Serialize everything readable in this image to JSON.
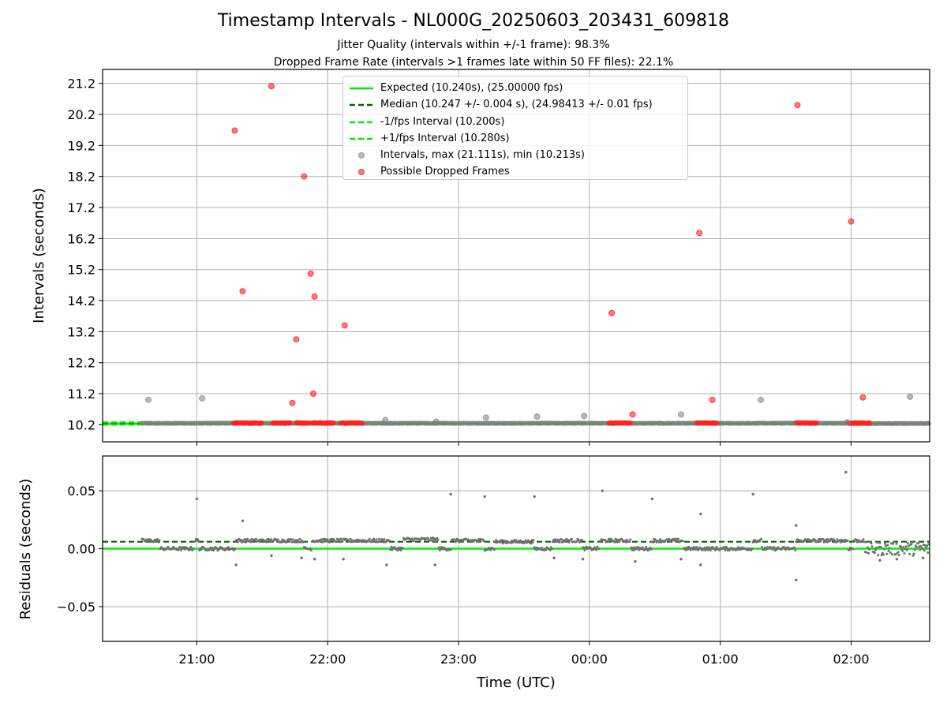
{
  "title": "Timestamp Intervals - NL000G_20250603_203431_609818",
  "subtitle_lines": [
    "Jitter Quality (intervals within +/-1 frame): 98.3%",
    "Dropped Frame Rate (intervals >1 frames late within 50 FF files): 22.1%"
  ],
  "chart_data": [
    {
      "type": "scatter",
      "panel": "top",
      "ylabel": "Intervals (seconds)",
      "xlabel": "",
      "x_time_range_hours": [
        20.28,
        26.6
      ],
      "ylim": [
        9.65,
        21.65
      ],
      "yticks": [
        10.2,
        11.2,
        12.2,
        13.2,
        14.2,
        15.2,
        16.2,
        17.2,
        18.2,
        19.2,
        20.2,
        21.2
      ],
      "ytick_labels": [
        "10.2",
        "11.2",
        "12.2",
        "13.2",
        "14.2",
        "15.2",
        "16.2",
        "17.2",
        "18.2",
        "19.2",
        "20.2",
        "21.2"
      ],
      "grid": true,
      "legend_position": "top-center",
      "colors": {
        "expected": "#00ee00",
        "median": "#006400",
        "minus_fps": "#00ee00",
        "plus_fps": "#00ee00",
        "intervals": "#808080",
        "dropped": "#ff2020"
      },
      "legend": [
        {
          "key": "expected",
          "style": "solid",
          "label": "Expected (10.240s), (25.00000 fps)"
        },
        {
          "key": "median",
          "style": "dashed",
          "label": "Median (10.247 +/- 0.004 s), (24.98413 +/- 0.01 fps)"
        },
        {
          "key": "minus_fps",
          "style": "dashed",
          "label": "-1/fps Interval (10.200s)"
        },
        {
          "key": "plus_fps",
          "style": "dashed",
          "label": "+1/fps Interval (10.280s)"
        },
        {
          "key": "intervals",
          "style": "marker",
          "label": "Intervals, max (21.111s), min (10.213s)"
        },
        {
          "key": "dropped",
          "style": "marker",
          "label": "Possible Dropped Frames"
        }
      ],
      "lines": {
        "expected": 10.24,
        "median": 10.247,
        "minus_fps": 10.2,
        "plus_fps": 10.28
      },
      "baseline_segments": [
        {
          "start": 20.58,
          "end": 21.0,
          "value": 10.247
        },
        {
          "start": 21.0,
          "end": 21.9,
          "value": 10.25
        },
        {
          "start": 21.9,
          "end": 22.5,
          "value": 10.247
        },
        {
          "start": 22.5,
          "end": 22.85,
          "value": 10.248
        },
        {
          "start": 22.85,
          "end": 23.6,
          "value": 10.247
        },
        {
          "start": 23.6,
          "end": 24.3,
          "value": 10.25
        },
        {
          "start": 24.3,
          "end": 25.3,
          "value": 10.247
        },
        {
          "start": 25.3,
          "end": 26.0,
          "value": 10.25
        },
        {
          "start": 26.0,
          "end": 26.6,
          "value": 10.24
        }
      ],
      "dropped_segments": [
        {
          "start": 21.28,
          "end": 21.5
        },
        {
          "start": 21.58,
          "end": 21.72
        },
        {
          "start": 21.76,
          "end": 21.86
        },
        {
          "start": 21.88,
          "end": 22.05
        },
        {
          "start": 22.1,
          "end": 22.27
        },
        {
          "start": 24.15,
          "end": 24.32
        },
        {
          "start": 24.82,
          "end": 24.92
        },
        {
          "start": 24.92,
          "end": 24.98
        },
        {
          "start": 25.58,
          "end": 25.74
        },
        {
          "start": 25.98,
          "end": 26.15
        }
      ],
      "intervals_outliers": [
        {
          "x": 20.63,
          "y": 11.0
        },
        {
          "x": 21.04,
          "y": 11.05
        },
        {
          "x": 22.44,
          "y": 10.35
        },
        {
          "x": 22.83,
          "y": 10.3
        },
        {
          "x": 23.21,
          "y": 10.43
        },
        {
          "x": 23.6,
          "y": 10.46
        },
        {
          "x": 23.96,
          "y": 10.48
        },
        {
          "x": 24.7,
          "y": 10.53
        },
        {
          "x": 25.31,
          "y": 11.0
        },
        {
          "x": 25.97,
          "y": 10.28
        },
        {
          "x": 26.45,
          "y": 11.1
        }
      ],
      "dropped_outliers": [
        {
          "x": 21.29,
          "y": 19.68
        },
        {
          "x": 21.35,
          "y": 14.5
        },
        {
          "x": 21.57,
          "y": 21.11
        },
        {
          "x": 21.73,
          "y": 10.9
        },
        {
          "x": 21.76,
          "y": 12.95
        },
        {
          "x": 21.82,
          "y": 18.2
        },
        {
          "x": 21.87,
          "y": 15.07
        },
        {
          "x": 21.89,
          "y": 11.2
        },
        {
          "x": 21.9,
          "y": 14.33
        },
        {
          "x": 22.13,
          "y": 13.4
        },
        {
          "x": 24.17,
          "y": 13.8
        },
        {
          "x": 24.33,
          "y": 10.53
        },
        {
          "x": 24.84,
          "y": 16.38
        },
        {
          "x": 24.94,
          "y": 11.0
        },
        {
          "x": 25.59,
          "y": 20.5
        },
        {
          "x": 26.0,
          "y": 16.75
        },
        {
          "x": 26.09,
          "y": 11.08
        }
      ]
    },
    {
      "type": "scatter",
      "panel": "bottom",
      "ylabel": "Residuals (seconds)",
      "xlabel": "Time (UTC)",
      "x_time_range_hours": [
        20.28,
        26.6
      ],
      "ylim": [
        -0.08,
        0.08
      ],
      "yticks": [
        0.05,
        0.0,
        -0.05
      ],
      "ytick_labels": [
        "0.05",
        "0.00",
        "−0.05"
      ],
      "xticks_hours": [
        21,
        22,
        23,
        24,
        25,
        26
      ],
      "xtick_labels": [
        "21:00",
        "22:00",
        "23:00",
        "00:00",
        "01:00",
        "02:00"
      ],
      "grid": true,
      "colors": {
        "points": "#707070",
        "zero_line": "#00ee00",
        "median_line": "#006400"
      },
      "lines": {
        "zero": 0.0,
        "median": 0.006
      },
      "band_segments": [
        {
          "start": 20.58,
          "end": 20.72,
          "value": 0.007
        },
        {
          "start": 20.72,
          "end": 20.98,
          "value": 0.0
        },
        {
          "start": 20.98,
          "end": 21.02,
          "value": 0.007
        },
        {
          "start": 21.02,
          "end": 21.3,
          "value": 0.0
        },
        {
          "start": 21.3,
          "end": 21.82,
          "value": 0.007
        },
        {
          "start": 21.82,
          "end": 21.88,
          "value": 0.0
        },
        {
          "start": 21.88,
          "end": 22.48,
          "value": 0.007
        },
        {
          "start": 22.48,
          "end": 22.58,
          "value": 0.0
        },
        {
          "start": 22.58,
          "end": 22.85,
          "value": 0.008
        },
        {
          "start": 22.85,
          "end": 22.95,
          "value": 0.0
        },
        {
          "start": 22.95,
          "end": 23.2,
          "value": 0.007
        },
        {
          "start": 23.2,
          "end": 23.28,
          "value": 0.0
        },
        {
          "start": 23.28,
          "end": 23.58,
          "value": 0.006
        },
        {
          "start": 23.58,
          "end": 23.72,
          "value": 0.0
        },
        {
          "start": 23.72,
          "end": 23.95,
          "value": 0.007
        },
        {
          "start": 23.95,
          "end": 24.08,
          "value": 0.0
        },
        {
          "start": 24.08,
          "end": 24.32,
          "value": 0.007
        },
        {
          "start": 24.32,
          "end": 24.48,
          "value": 0.0
        },
        {
          "start": 24.48,
          "end": 24.72,
          "value": 0.007
        },
        {
          "start": 24.72,
          "end": 25.25,
          "value": 0.0
        },
        {
          "start": 25.25,
          "end": 25.32,
          "value": 0.007
        },
        {
          "start": 25.32,
          "end": 25.58,
          "value": 0.0
        },
        {
          "start": 25.58,
          "end": 25.98,
          "value": 0.007
        },
        {
          "start": 25.98,
          "end": 26.02,
          "value": 0.0
        },
        {
          "start": 26.02,
          "end": 26.1,
          "value": 0.007
        },
        {
          "start": 26.1,
          "end": 26.6,
          "value": 0.0
        }
      ],
      "outliers": [
        {
          "x": 21.0,
          "y": 0.043
        },
        {
          "x": 21.35,
          "y": 0.024
        },
        {
          "x": 21.3,
          "y": -0.014
        },
        {
          "x": 22.45,
          "y": -0.014
        },
        {
          "x": 22.82,
          "y": -0.014
        },
        {
          "x": 22.94,
          "y": 0.047
        },
        {
          "x": 23.2,
          "y": 0.045
        },
        {
          "x": 23.58,
          "y": 0.045
        },
        {
          "x": 24.1,
          "y": 0.05
        },
        {
          "x": 24.48,
          "y": 0.043
        },
        {
          "x": 24.35,
          "y": -0.011
        },
        {
          "x": 24.85,
          "y": 0.03
        },
        {
          "x": 24.85,
          "y": -0.014
        },
        {
          "x": 25.25,
          "y": 0.047
        },
        {
          "x": 25.58,
          "y": 0.02
        },
        {
          "x": 25.58,
          "y": -0.027
        },
        {
          "x": 25.96,
          "y": 0.066
        },
        {
          "x": 21.8,
          "y": -0.008
        },
        {
          "x": 21.9,
          "y": -0.009
        },
        {
          "x": 22.12,
          "y": -0.009
        },
        {
          "x": 21.57,
          "y": -0.006
        },
        {
          "x": 23.73,
          "y": -0.008
        },
        {
          "x": 23.95,
          "y": -0.009
        },
        {
          "x": 24.7,
          "y": -0.009
        },
        {
          "x": 26.35,
          "y": -0.009
        },
        {
          "x": 26.55,
          "y": -0.008
        },
        {
          "x": 26.22,
          "y": -0.01
        }
      ]
    }
  ]
}
